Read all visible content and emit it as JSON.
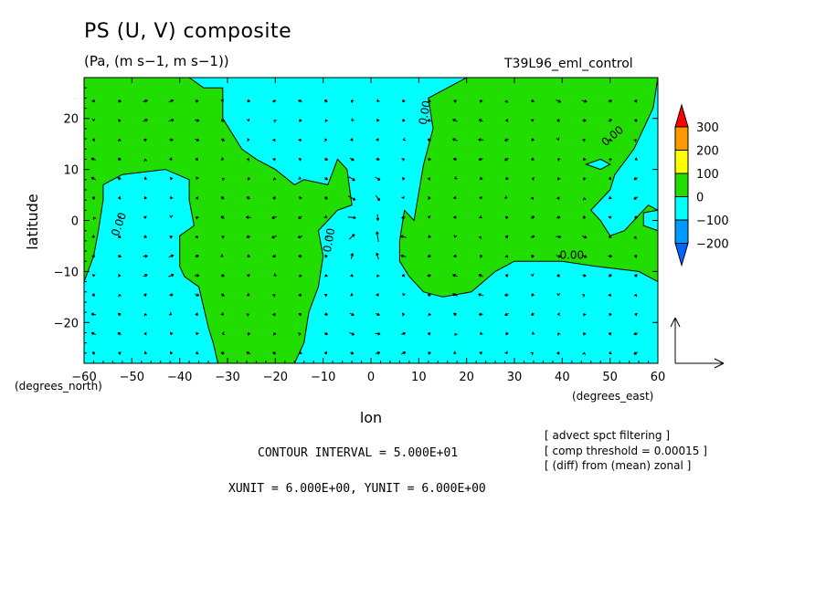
{
  "header": {
    "title": "PS (U, V) composite",
    "units": "(Pa, (m s−1, m s−1))",
    "run": "T39L96_eml_control"
  },
  "footer": {
    "contour_interval": "CONTOUR INTERVAL = 5.000E+01",
    "xyunit": "XUNIT = 6.000E+00, YUNIT = 6.000E+00",
    "notes": [
      "[ advect spct filtering ]",
      "[ comp threshold = 0.00015 ]",
      "[ (diff) from (mean) zonal ]"
    ]
  },
  "chart_data": {
    "type": "heatmap",
    "title": "PS (U, V) composite",
    "xlabel": "lon",
    "ylabel": "latitude",
    "x_unit_label": "(degrees_east)",
    "y_unit_label": "(degrees_north)",
    "xlim": [
      -60,
      60
    ],
    "ylim": [
      -28,
      28
    ],
    "xticks": [
      -60,
      -50,
      -40,
      -30,
      -20,
      -10,
      0,
      10,
      20,
      30,
      40,
      50,
      60
    ],
    "yticks": [
      -20,
      -10,
      0,
      10,
      20
    ],
    "xtick_labels": [
      "−60",
      "−50",
      "−40",
      "−30",
      "−20",
      "−10",
      "0",
      "10",
      "20",
      "30",
      "40",
      "50",
      "60"
    ],
    "ytick_labels": [
      "−20",
      "−10",
      "0",
      "10",
      "20"
    ],
    "contour_interval": 50,
    "colorbar": {
      "levels": [
        300,
        200,
        100,
        0,
        -100,
        -200
      ],
      "level_labels": [
        "300",
        "200",
        "100",
        "0",
        "−100",
        "−200"
      ],
      "colors": [
        "#ff0000",
        "#ff9900",
        "#ffff00",
        "#22dd00",
        "#00ffff",
        "#0099ff",
        "#0066ff"
      ]
    },
    "fill_colors": {
      "positive": "#22dd00",
      "negative": "#00ffff"
    },
    "contour_labels": [
      "0.00",
      "0.00",
      "0.00",
      "0.00",
      "0.00"
    ],
    "regions": [
      {
        "sign": "negative",
        "points": [
          [
            -60,
            28
          ],
          [
            -38,
            28
          ],
          [
            -35,
            26
          ],
          [
            -31,
            26
          ],
          [
            -31,
            20
          ],
          [
            -27,
            14
          ],
          [
            -24,
            12
          ],
          [
            -20,
            10
          ],
          [
            -16,
            7
          ],
          [
            -14,
            8
          ],
          [
            -9,
            7
          ],
          [
            -7,
            12
          ],
          [
            -5,
            10
          ],
          [
            -4,
            3
          ],
          [
            0,
            4
          ],
          [
            4,
            3
          ],
          [
            7,
            2
          ],
          [
            9,
            0
          ],
          [
            11,
            11
          ],
          [
            13,
            18
          ],
          [
            12,
            24
          ],
          [
            20,
            28
          ],
          [
            60,
            28
          ],
          [
            60,
            -28
          ],
          [
            8,
            -28
          ],
          [
            9,
            -25
          ],
          [
            10,
            -22
          ],
          [
            9,
            -16
          ],
          [
            6,
            -12
          ],
          [
            2,
            -10
          ],
          [
            -2,
            -6
          ],
          [
            -7,
            -4
          ],
          [
            -10,
            -7
          ],
          [
            -11,
            -13
          ],
          [
            -13,
            -18
          ],
          [
            -14,
            -24
          ],
          [
            -16,
            -28
          ],
          [
            -60,
            -28
          ]
        ]
      },
      {
        "sign": "positive",
        "points": [
          [
            -60,
            28
          ],
          [
            -60,
            -12
          ],
          [
            -58,
            -7
          ],
          [
            -57,
            -2
          ],
          [
            -56,
            4
          ],
          [
            -56,
            7
          ],
          [
            -52,
            9
          ],
          [
            -43,
            10
          ],
          [
            -38,
            8
          ],
          [
            -38,
            4
          ],
          [
            -37,
            -1
          ],
          [
            -40,
            -3
          ],
          [
            -40,
            -9
          ],
          [
            -39,
            -11
          ],
          [
            -36,
            -13
          ],
          [
            -35,
            -17
          ],
          [
            -34,
            -21
          ],
          [
            -33,
            -24
          ],
          [
            -32,
            -28
          ],
          [
            -16,
            -28
          ],
          [
            -14,
            -24
          ],
          [
            -13,
            -18
          ],
          [
            -11,
            -13
          ],
          [
            -10,
            -7
          ],
          [
            -7,
            -4
          ],
          [
            -2,
            -6
          ],
          [
            2,
            -10
          ],
          [
            6,
            -12
          ],
          [
            9,
            -16
          ],
          [
            10,
            -22
          ],
          [
            9,
            -25
          ],
          [
            8,
            -28
          ],
          [
            -60,
            -28
          ]
        ]
      },
      {
        "sign": "positive",
        "points": [
          [
            -60,
            28
          ],
          [
            -60,
            -12
          ],
          [
            -58,
            -7
          ],
          [
            -57,
            -2
          ],
          [
            -56,
            4
          ],
          [
            -56,
            7
          ],
          [
            -52,
            9
          ],
          [
            -43,
            10
          ],
          [
            -38,
            8
          ],
          [
            -38,
            4
          ],
          [
            -37,
            -1
          ],
          [
            -40,
            -3
          ],
          [
            -40,
            -9
          ],
          [
            -39,
            -11
          ],
          [
            -36,
            -13
          ],
          [
            -35,
            -17
          ],
          [
            -34,
            -21
          ],
          [
            -33,
            -24
          ],
          [
            -32,
            -28
          ],
          [
            -60,
            -28
          ]
        ]
      },
      {
        "sign": "positive",
        "points": [
          [
            -38,
            28
          ],
          [
            -35,
            26
          ],
          [
            -31,
            26
          ],
          [
            -31,
            20
          ],
          [
            -27,
            14
          ],
          [
            -24,
            12
          ],
          [
            -20,
            10
          ],
          [
            -16,
            7
          ],
          [
            -14,
            8
          ],
          [
            -9,
            7
          ],
          [
            -7,
            12
          ],
          [
            -5,
            10
          ],
          [
            -4,
            3
          ],
          [
            -7,
            2
          ],
          [
            -9,
            0
          ],
          [
            -11,
            -2
          ],
          [
            -10,
            -7
          ],
          [
            -11,
            -13
          ],
          [
            -13,
            -18
          ],
          [
            -14,
            -24
          ],
          [
            -16,
            -28
          ],
          [
            -32,
            -28
          ],
          [
            -33,
            -24
          ],
          [
            -34,
            -21
          ],
          [
            -35,
            -17
          ],
          [
            -36,
            -13
          ],
          [
            -39,
            -11
          ],
          [
            -40,
            -9
          ],
          [
            -40,
            -3
          ],
          [
            -37,
            -1
          ],
          [
            -38,
            4
          ],
          [
            -38,
            8
          ],
          [
            -43,
            10
          ],
          [
            -52,
            9
          ],
          [
            -56,
            7
          ],
          [
            -56,
            4
          ],
          [
            -57,
            -2
          ],
          [
            -58,
            -7
          ],
          [
            -60,
            -12
          ],
          [
            -60,
            28
          ]
        ]
      },
      {
        "sign": "positive",
        "points": [
          [
            20,
            28
          ],
          [
            12,
            24
          ],
          [
            13,
            18
          ],
          [
            11,
            11
          ],
          [
            9,
            0
          ],
          [
            7,
            2
          ],
          [
            6,
            -4
          ],
          [
            6,
            -8
          ],
          [
            8,
            -11
          ],
          [
            11,
            -14
          ],
          [
            15,
            -15
          ],
          [
            21,
            -14
          ],
          [
            26,
            -10
          ],
          [
            30,
            -8
          ],
          [
            40,
            -8
          ],
          [
            47,
            -9
          ],
          [
            56,
            -10
          ],
          [
            60,
            -12
          ],
          [
            60,
            2
          ],
          [
            58,
            3
          ],
          [
            55,
            0
          ],
          [
            53,
            -2
          ],
          [
            50,
            -3
          ],
          [
            48,
            0
          ],
          [
            46,
            2
          ],
          [
            50,
            6
          ],
          [
            51,
            9
          ],
          [
            55,
            14
          ],
          [
            57,
            18
          ],
          [
            59,
            22
          ],
          [
            60,
            28
          ]
        ]
      },
      {
        "sign": "negative",
        "points": [
          [
            45,
            11
          ],
          [
            48,
            10
          ],
          [
            50,
            11
          ],
          [
            48,
            12
          ]
        ]
      },
      {
        "sign": "negative",
        "points": [
          [
            60,
            2
          ],
          [
            57,
            1.5
          ],
          [
            57,
            -1
          ],
          [
            60,
            -2
          ]
        ]
      }
    ],
    "wind_vectors_note": "Vector field (U, V) drawn as arrows; strongest convergence near 0°E, 0°N",
    "reference_vector": {
      "u": 6.0,
      "v": 6.0
    }
  }
}
